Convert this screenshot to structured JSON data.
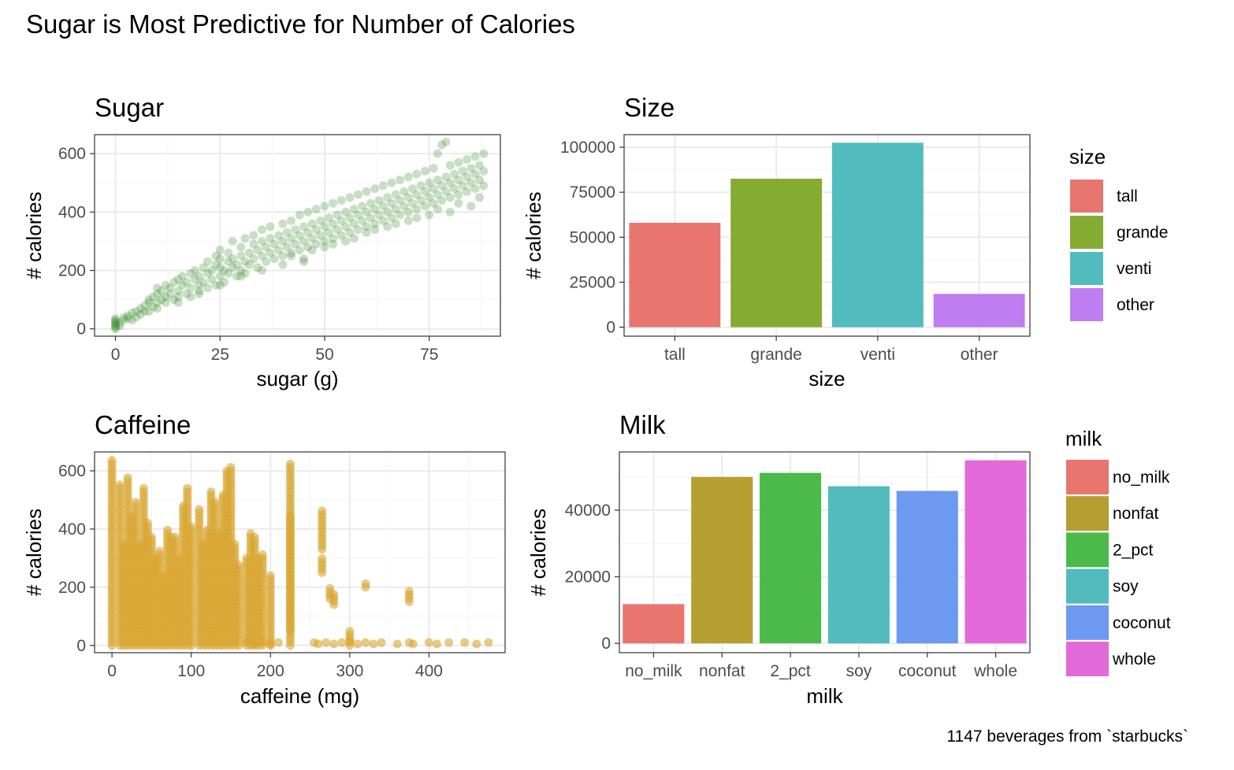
{
  "figure": {
    "title": "Sugar is Most Predictive for Number of Calories",
    "caption": "1147 beverages from `starbucks`"
  },
  "chart_data": [
    {
      "id": "sugar",
      "type": "scatter",
      "title": "Sugar",
      "xlabel": "sugar (g)",
      "ylabel": "# calories",
      "xlim": [
        -5,
        92
      ],
      "ylim": [
        -25,
        665
      ],
      "xticks": [
        0,
        25,
        50,
        75
      ],
      "yticks": [
        0,
        200,
        400,
        600
      ],
      "color": "#3d8b2f",
      "opacity": 0.28,
      "grid": true,
      "points": [
        [
          0,
          0
        ],
        [
          0,
          5
        ],
        [
          0,
          10
        ],
        [
          0,
          15
        ],
        [
          0,
          20
        ],
        [
          0,
          25
        ],
        [
          0,
          30
        ],
        [
          0,
          35
        ],
        [
          1,
          10
        ],
        [
          1,
          20
        ],
        [
          2,
          30
        ],
        [
          2,
          40
        ],
        [
          3,
          45
        ],
        [
          3,
          35
        ],
        [
          4,
          30
        ],
        [
          4,
          55
        ],
        [
          5,
          60
        ],
        [
          5,
          40
        ],
        [
          6,
          70
        ],
        [
          6,
          50
        ],
        [
          7,
          80
        ],
        [
          7,
          60
        ],
        [
          8,
          90
        ],
        [
          8,
          100
        ],
        [
          8,
          60
        ],
        [
          9,
          110
        ],
        [
          9,
          75
        ],
        [
          10,
          120
        ],
        [
          10,
          90
        ],
        [
          10,
          140
        ],
        [
          11,
          130
        ],
        [
          11,
          100
        ],
        [
          12,
          150
        ],
        [
          12,
          110
        ],
        [
          12,
          90
        ],
        [
          13,
          140
        ],
        [
          13,
          120
        ],
        [
          14,
          160
        ],
        [
          14,
          100
        ],
        [
          15,
          170
        ],
        [
          15,
          130
        ],
        [
          15,
          110
        ],
        [
          16,
          150
        ],
        [
          16,
          180
        ],
        [
          17,
          120
        ],
        [
          17,
          160
        ],
        [
          18,
          190
        ],
        [
          18,
          140
        ],
        [
          18,
          110
        ],
        [
          19,
          170
        ],
        [
          19,
          200
        ],
        [
          20,
          150
        ],
        [
          20,
          180
        ],
        [
          20,
          130
        ],
        [
          21,
          210
        ],
        [
          21,
          160
        ],
        [
          22,
          190
        ],
        [
          22,
          140
        ],
        [
          22,
          230
        ],
        [
          23,
          170
        ],
        [
          23,
          200
        ],
        [
          24,
          220
        ],
        [
          24,
          150
        ],
        [
          24,
          250
        ],
        [
          25,
          180
        ],
        [
          25,
          210
        ],
        [
          25,
          240
        ],
        [
          25,
          270
        ],
        [
          26,
          200
        ],
        [
          26,
          160
        ],
        [
          27,
          230
        ],
        [
          27,
          190
        ],
        [
          27,
          260
        ],
        [
          28,
          210
        ],
        [
          28,
          240
        ],
        [
          28,
          300
        ],
        [
          29,
          180
        ],
        [
          29,
          220
        ],
        [
          30,
          250
        ],
        [
          30,
          200
        ],
        [
          30,
          280
        ],
        [
          31,
          230
        ],
        [
          31,
          310
        ],
        [
          31,
          190
        ],
        [
          32,
          260
        ],
        [
          32,
          220
        ],
        [
          33,
          240
        ],
        [
          33,
          290
        ],
        [
          33,
          320
        ],
        [
          34,
          210
        ],
        [
          34,
          270
        ],
        [
          35,
          250
        ],
        [
          35,
          300
        ],
        [
          35,
          340
        ],
        [
          36,
          230
        ],
        [
          36,
          280
        ],
        [
          37,
          260
        ],
        [
          37,
          310
        ],
        [
          37,
          350
        ],
        [
          38,
          240
        ],
        [
          38,
          290
        ],
        [
          39,
          270
        ],
        [
          39,
          320
        ],
        [
          40,
          250
        ],
        [
          40,
          300
        ],
        [
          40,
          360
        ],
        [
          41,
          280
        ],
        [
          41,
          330
        ],
        [
          42,
          260
        ],
        [
          42,
          310
        ],
        [
          42,
          370
        ],
        [
          43,
          290
        ],
        [
          43,
          340
        ],
        [
          44,
          270
        ],
        [
          44,
          320
        ],
        [
          44,
          390
        ],
        [
          45,
          300
        ],
        [
          45,
          350
        ],
        [
          45,
          230
        ],
        [
          46,
          280
        ],
        [
          46,
          330
        ],
        [
          46,
          400
        ],
        [
          47,
          310
        ],
        [
          47,
          360
        ],
        [
          48,
          290
        ],
        [
          48,
          340
        ],
        [
          48,
          410
        ],
        [
          49,
          320
        ],
        [
          49,
          370
        ],
        [
          50,
          300
        ],
        [
          50,
          350
        ],
        [
          50,
          420
        ],
        [
          51,
          330
        ],
        [
          51,
          380
        ],
        [
          52,
          310
        ],
        [
          52,
          360
        ],
        [
          52,
          430
        ],
        [
          53,
          340
        ],
        [
          53,
          390
        ],
        [
          54,
          320
        ],
        [
          54,
          370
        ],
        [
          54,
          440
        ],
        [
          55,
          350
        ],
        [
          55,
          400
        ],
        [
          56,
          330
        ],
        [
          56,
          380
        ],
        [
          56,
          450
        ],
        [
          57,
          360
        ],
        [
          57,
          410
        ],
        [
          58,
          340
        ],
        [
          58,
          390
        ],
        [
          58,
          460
        ],
        [
          59,
          370
        ],
        [
          59,
          420
        ],
        [
          60,
          350
        ],
        [
          60,
          400
        ],
        [
          60,
          470
        ],
        [
          61,
          380
        ],
        [
          61,
          430
        ],
        [
          62,
          360
        ],
        [
          62,
          410
        ],
        [
          62,
          480
        ],
        [
          63,
          390
        ],
        [
          63,
          440
        ],
        [
          64,
          370
        ],
        [
          64,
          420
        ],
        [
          64,
          490
        ],
        [
          65,
          400
        ],
        [
          65,
          450
        ],
        [
          66,
          380
        ],
        [
          66,
          430
        ],
        [
          66,
          500
        ],
        [
          67,
          410
        ],
        [
          67,
          460
        ],
        [
          68,
          390
        ],
        [
          68,
          440
        ],
        [
          68,
          510
        ],
        [
          69,
          420
        ],
        [
          69,
          470
        ],
        [
          70,
          400
        ],
        [
          70,
          450
        ],
        [
          70,
          520
        ],
        [
          71,
          430
        ],
        [
          71,
          480
        ],
        [
          72,
          410
        ],
        [
          72,
          460
        ],
        [
          72,
          530
        ],
        [
          73,
          440
        ],
        [
          73,
          490
        ],
        [
          74,
          420
        ],
        [
          74,
          470
        ],
        [
          74,
          540
        ],
        [
          75,
          450
        ],
        [
          75,
          500
        ],
        [
          76,
          430
        ],
        [
          76,
          480
        ],
        [
          76,
          550
        ],
        [
          77,
          460
        ],
        [
          77,
          510
        ],
        [
          77,
          600
        ],
        [
          78,
          440
        ],
        [
          78,
          490
        ],
        [
          78,
          630
        ],
        [
          79,
          470
        ],
        [
          79,
          520
        ],
        [
          79,
          640
        ],
        [
          80,
          450
        ],
        [
          80,
          500
        ],
        [
          80,
          560
        ],
        [
          81,
          480
        ],
        [
          81,
          530
        ],
        [
          82,
          460
        ],
        [
          82,
          510
        ],
        [
          82,
          570
        ],
        [
          83,
          490
        ],
        [
          83,
          540
        ],
        [
          84,
          470
        ],
        [
          84,
          520
        ],
        [
          84,
          580
        ],
        [
          85,
          500
        ],
        [
          85,
          550
        ],
        [
          86,
          480
        ],
        [
          86,
          530
        ],
        [
          86,
          590
        ],
        [
          87,
          510
        ],
        [
          87,
          560
        ],
        [
          88,
          490
        ],
        [
          88,
          540
        ],
        [
          88,
          600
        ],
        [
          45,
          240
        ],
        [
          40,
          220
        ],
        [
          35,
          200
        ],
        [
          30,
          180
        ],
        [
          50,
          280
        ],
        [
          55,
          300
        ],
        [
          60,
          330
        ],
        [
          65,
          350
        ],
        [
          70,
          370
        ],
        [
          75,
          390
        ],
        [
          80,
          400
        ],
        [
          85,
          420
        ],
        [
          20,
          120
        ],
        [
          25,
          150
        ],
        [
          15,
          90
        ],
        [
          10,
          70
        ],
        [
          42,
          250
        ],
        [
          47,
          270
        ],
        [
          52,
          290
        ],
        [
          57,
          310
        ],
        [
          62,
          340
        ],
        [
          67,
          360
        ],
        [
          72,
          380
        ],
        [
          77,
          410
        ],
        [
          82,
          430
        ],
        [
          87,
          450
        ]
      ]
    },
    {
      "id": "size",
      "type": "bar",
      "title": "Size",
      "xlabel": "size",
      "ylabel": "# calories",
      "ylim": [
        -5000,
        107000
      ],
      "yticks": [
        0,
        25000,
        50000,
        75000,
        100000
      ],
      "categories": [
        "tall",
        "grande",
        "venti",
        "other"
      ],
      "values": [
        58000,
        82500,
        102500,
        18500
      ],
      "colors": [
        "#e8766f",
        "#86ab33",
        "#52bbbe",
        "#be7df0"
      ],
      "legend": {
        "title": "size",
        "position": "right"
      }
    },
    {
      "id": "caffeine",
      "type": "scatter",
      "title": "Caffeine",
      "xlabel": "caffeine (mg)",
      "ylabel": "# calories",
      "xlim": [
        -22,
        496
      ],
      "ylim": [
        -25,
        665
      ],
      "xticks": [
        0,
        100,
        200,
        300,
        400
      ],
      "yticks": [
        0,
        200,
        400,
        600
      ],
      "color": "#d9a634",
      "opacity": 0.6,
      "grid": true,
      "columns": [
        [
          0,
          0,
          640
        ],
        [
          10,
          0,
          560
        ],
        [
          15,
          0,
          350
        ],
        [
          20,
          0,
          580
        ],
        [
          25,
          0,
          450
        ],
        [
          30,
          0,
          500
        ],
        [
          35,
          0,
          350
        ],
        [
          40,
          0,
          550
        ],
        [
          45,
          0,
          420
        ],
        [
          50,
          0,
          380
        ],
        [
          55,
          0,
          300
        ],
        [
          60,
          0,
          330
        ],
        [
          65,
          0,
          250
        ],
        [
          70,
          0,
          400
        ],
        [
          75,
          0,
          380
        ],
        [
          80,
          0,
          380
        ],
        [
          85,
          0,
          300
        ],
        [
          90,
          0,
          480
        ],
        [
          95,
          0,
          550
        ],
        [
          100,
          0,
          410
        ],
        [
          110,
          0,
          470
        ],
        [
          115,
          0,
          350
        ],
        [
          120,
          0,
          400
        ],
        [
          125,
          0,
          530
        ],
        [
          130,
          0,
          500
        ],
        [
          135,
          0,
          390
        ],
        [
          140,
          0,
          520
        ],
        [
          145,
          0,
          600
        ],
        [
          150,
          0,
          620
        ],
        [
          155,
          0,
          350
        ],
        [
          160,
          0,
          280
        ],
        [
          170,
          0,
          310
        ],
        [
          175,
          0,
          390
        ],
        [
          180,
          0,
          380
        ],
        [
          185,
          0,
          300
        ],
        [
          190,
          0,
          320
        ],
        [
          200,
          0,
          250
        ],
        [
          225,
          0,
          630
        ],
        [
          225,
          50,
          450
        ],
        [
          265,
          330,
          470
        ],
        [
          265,
          250,
          300
        ],
        [
          275,
          160,
          200
        ],
        [
          280,
          140,
          180
        ],
        [
          300,
          0,
          50
        ],
        [
          320,
          200,
          220
        ],
        [
          375,
          150,
          190
        ]
      ],
      "points": [
        [
          255,
          10
        ],
        [
          260,
          5
        ],
        [
          270,
          10
        ],
        [
          280,
          5
        ],
        [
          290,
          10
        ],
        [
          300,
          15
        ],
        [
          310,
          5
        ],
        [
          320,
          10
        ],
        [
          330,
          5
        ],
        [
          340,
          10
        ],
        [
          360,
          5
        ],
        [
          375,
          10
        ],
        [
          380,
          5
        ],
        [
          400,
          10
        ],
        [
          410,
          5
        ],
        [
          425,
          10
        ],
        [
          445,
          10
        ],
        [
          460,
          5
        ],
        [
          475,
          10
        ],
        [
          170,
          10
        ],
        [
          180,
          5
        ],
        [
          190,
          10
        ],
        [
          200,
          5
        ],
        [
          210,
          10
        ]
      ]
    },
    {
      "id": "milk",
      "type": "bar",
      "title": "Milk",
      "xlabel": "milk",
      "ylabel": "# calories",
      "ylim": [
        -2800,
        57500
      ],
      "yticks": [
        0,
        20000,
        40000
      ],
      "categories": [
        "no_milk",
        "nonfat",
        "2_pct",
        "soy",
        "coconut",
        "whole"
      ],
      "values": [
        11800,
        50000,
        51200,
        47200,
        45800,
        55000
      ],
      "colors": [
        "#e8766f",
        "#b59f30",
        "#4bba4a",
        "#52bbbe",
        "#6e99f0",
        "#e26ad9"
      ],
      "legend": {
        "title": "milk",
        "position": "right"
      }
    }
  ]
}
